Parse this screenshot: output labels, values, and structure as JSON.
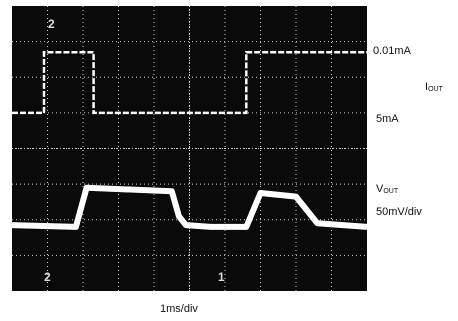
{
  "chart_data": {
    "type": "line",
    "title": "",
    "xlabel": "1ms/div",
    "grid": true,
    "grid_divisions": {
      "x": 10,
      "y": 8
    },
    "x_unit": "ms",
    "xlim": [
      0,
      10
    ],
    "markers": {
      "top_left": "2",
      "bottom_left": "2",
      "bottom_right_of_center": "1"
    },
    "series": [
      {
        "name": "IOUT",
        "x": [
          0,
          0.9,
          0.9,
          2.3,
          2.3,
          4.9,
          4.9,
          6.6,
          6.6,
          10
        ],
        "levels": [
          "5mA",
          "5mA",
          "0.01mA",
          "0.01mA",
          "5mA",
          "5mA",
          "5mA",
          "5mA",
          "0.01mA",
          "0.01mA"
        ]
      },
      {
        "name": "VOUT",
        "scale": "50mV/div",
        "x": [
          0,
          1.8,
          2.1,
          4.5,
          4.7,
          4.9,
          5.6,
          6.6,
          7.0,
          8.0,
          8.6,
          10
        ],
        "y_div": [
          -0.35,
          -0.4,
          0.7,
          0.6,
          -0.1,
          -0.35,
          -0.4,
          -0.4,
          0.55,
          0.45,
          -0.3,
          -0.4
        ]
      }
    ]
  },
  "labels": {
    "i_high": "0.01mA",
    "i_low": "5mA",
    "i_name_main": "I",
    "i_name_sub": "OUT",
    "v_name_main": "V",
    "v_name_sub": "OUT",
    "v_scale": "50mV/div",
    "timebase": "1ms/div"
  },
  "colors": {
    "screen": "#0a0a0a",
    "trace": "#ffffff",
    "grid": "#cfcfcf"
  }
}
